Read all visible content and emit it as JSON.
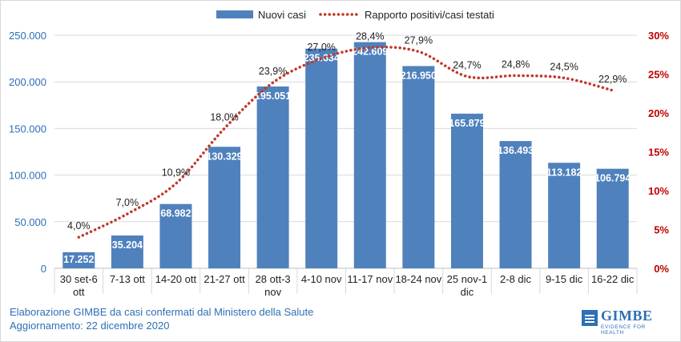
{
  "chart_data": {
    "type": "bar+line",
    "categories": [
      [
        "30 set-6",
        "ott"
      ],
      [
        "7-13 ott"
      ],
      [
        "14-20 ott"
      ],
      [
        "21-27 ott"
      ],
      [
        "28 ott-3",
        "nov"
      ],
      [
        "4-10 nov"
      ],
      [
        "11-17 nov"
      ],
      [
        "18-24 nov"
      ],
      [
        "25 nov-1",
        "dic"
      ],
      [
        "2-8 dic"
      ],
      [
        "9-15 dic"
      ],
      [
        "16-22 dic"
      ]
    ],
    "series": [
      {
        "name": "Nuovi casi",
        "type": "bar",
        "axis": "left",
        "values": [
          17252,
          35204,
          68982,
          130329,
          195051,
          235634,
          242609,
          216950,
          165879,
          136493,
          113182,
          106794
        ],
        "labels": [
          "17.252",
          "35.204",
          "68.982",
          "130.329",
          "195.051",
          "235.634",
          "242.609",
          "216.950",
          "165.879",
          "136.493",
          "113.182",
          "106.794"
        ],
        "color": "#4f81bd"
      },
      {
        "name": "Rapporto positivi/casi testati",
        "type": "line",
        "style": "dotted",
        "axis": "right",
        "values": [
          4.0,
          7.0,
          10.9,
          18.0,
          23.9,
          27.0,
          28.4,
          27.9,
          24.7,
          24.8,
          24.5,
          22.9
        ],
        "labels": [
          "4,0%",
          "7,0%",
          "10,9%",
          "18,0%",
          "23,9%",
          "27,0%",
          "28,4%",
          "27,9%",
          "24,7%",
          "24,8%",
          "24,5%",
          "22,9%"
        ],
        "color": "#c0392b"
      }
    ],
    "y_left": {
      "ylim": [
        0,
        250000
      ],
      "ticks": [
        0,
        50000,
        100000,
        150000,
        200000,
        250000
      ],
      "tick_labels": [
        "0",
        "50.000",
        "100.000",
        "150.000",
        "200.000",
        "250.000"
      ],
      "color": "#2e6fb5"
    },
    "y_right": {
      "ylim": [
        0,
        30
      ],
      "ticks": [
        0,
        5,
        10,
        15,
        20,
        25,
        30
      ],
      "tick_labels": [
        "0%",
        "5%",
        "10%",
        "15%",
        "20%",
        "25%",
        "30%"
      ],
      "color": "#c00000"
    },
    "legend_position": "top-center",
    "grid": true
  },
  "footer": {
    "line1": "Elaborazione GIMBE da casi confermati dal Ministero della Salute",
    "line2": "Aggiornamento: 22 dicembre 2020"
  },
  "logo": {
    "name": "GIMBE",
    "tagline": "EVIDENCE FOR HEALTH"
  }
}
